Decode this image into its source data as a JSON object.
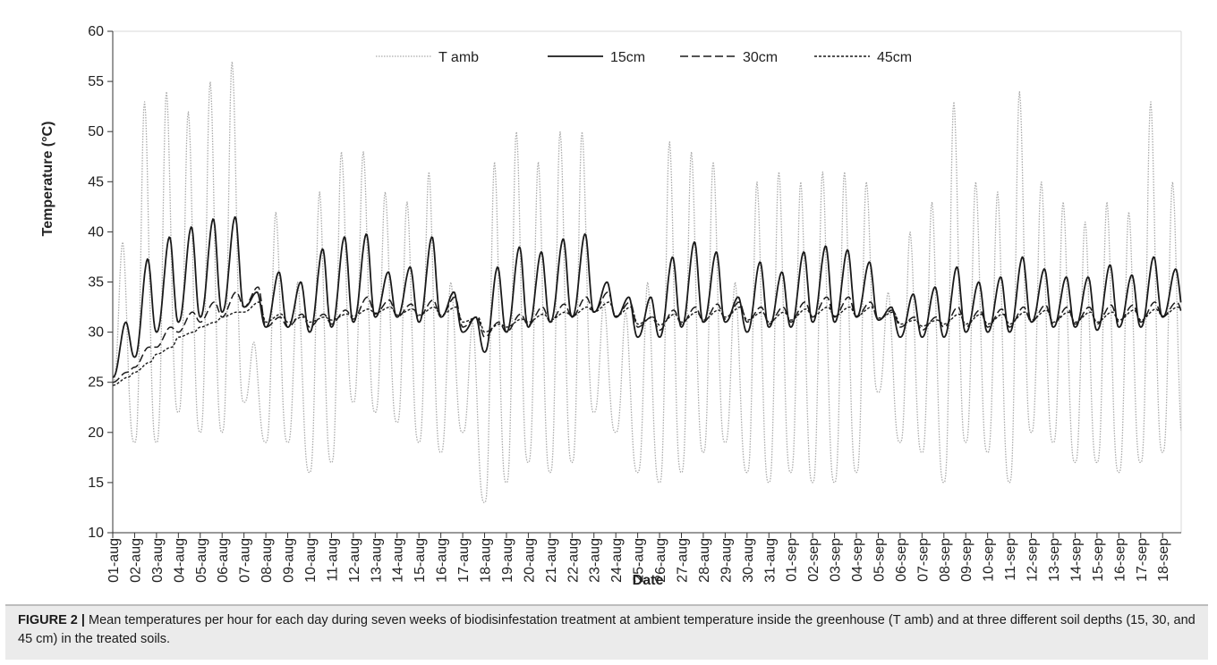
{
  "chart_data": {
    "type": "line",
    "title": "",
    "xlabel": "Date",
    "ylabel": "Temperature (°C)",
    "ylim": [
      10,
      60
    ],
    "yticks": [
      10,
      15,
      20,
      25,
      30,
      35,
      40,
      45,
      50,
      55,
      60
    ],
    "grid": false,
    "legend_position": "top-center",
    "categories": [
      "01-aug",
      "02-aug",
      "03-aug",
      "04-aug",
      "05-aug",
      "06-aug",
      "07-aug",
      "08-aug",
      "09-aug",
      "10-aug",
      "11-aug",
      "12-aug",
      "13-aug",
      "14-aug",
      "15-aug",
      "16-aug",
      "17-aug",
      "18-aug",
      "19-aug",
      "20-aug",
      "21-aug",
      "22-aug",
      "23-aug",
      "24-aug",
      "25-aug",
      "26-aug",
      "27-aug",
      "28-aug",
      "29-aug",
      "30-aug",
      "31-aug",
      "01-sep",
      "02-sep",
      "03-sep",
      "04-sep",
      "05-sep",
      "06-sep",
      "07-sep",
      "08-sep",
      "09-sep",
      "10-sep",
      "11-sep",
      "12-sep",
      "13-sep",
      "14-sep",
      "15-sep",
      "16-sep",
      "17-sep",
      "18-sep"
    ],
    "series": [
      {
        "name": "T amb",
        "style": "dotted",
        "color": "#aaaaaa",
        "daily_max": [
          39,
          53,
          54,
          52,
          55,
          57,
          29,
          42,
          35,
          44,
          48,
          48,
          44,
          43,
          46,
          35,
          31,
          47,
          50,
          47,
          50,
          50,
          33,
          32,
          35,
          49,
          48,
          47,
          35,
          45,
          46,
          45,
          46,
          46,
          45,
          34,
          40,
          43,
          53,
          45,
          44,
          54,
          45,
          43,
          41,
          43,
          42,
          53,
          45
        ],
        "daily_min": [
          25,
          19,
          19,
          22,
          20,
          20,
          23,
          19,
          19,
          16,
          17,
          23,
          22,
          21,
          19,
          18,
          20,
          13,
          15,
          17,
          16,
          17,
          22,
          20,
          16,
          15,
          16,
          18,
          19,
          16,
          15,
          16,
          15,
          15,
          16,
          24,
          19,
          18,
          15,
          19,
          18,
          15,
          20,
          19,
          17,
          17,
          16,
          17,
          18
        ]
      },
      {
        "name": "15cm",
        "style": "solid",
        "color": "#1a1a1a",
        "daily_max": [
          31,
          37.3,
          39.5,
          40.5,
          41.3,
          41.5,
          34,
          36,
          35,
          38.3,
          39.5,
          39.8,
          36,
          36.5,
          39.5,
          34,
          31.5,
          36.5,
          38.5,
          38,
          39.3,
          39.8,
          35,
          33.5,
          33.5,
          37.5,
          39,
          38,
          33.5,
          37,
          36,
          38,
          38.6,
          38.2,
          37,
          32.5,
          33.8,
          34.5,
          36.5,
          35,
          35.5,
          37.5,
          36.3,
          35.5,
          35.5,
          36.7,
          35.7,
          37.5,
          36.3
        ],
        "daily_min": [
          25.5,
          27.5,
          30,
          31,
          31.5,
          32,
          32.5,
          30.5,
          30.5,
          30,
          30.5,
          31,
          31.5,
          31.5,
          31,
          31.5,
          30,
          28,
          30,
          30.5,
          31,
          31.5,
          32,
          31.5,
          29.5,
          29.5,
          30.5,
          31,
          31,
          30,
          30.5,
          30.5,
          31,
          31,
          31.5,
          31.2,
          29.5,
          29.5,
          29.5,
          30,
          30,
          30,
          31,
          30.5,
          30.5,
          30.2,
          30.5,
          30.5,
          31.5
        ]
      },
      {
        "name": "30cm",
        "style": "dashed",
        "color": "#1a1a1a",
        "daily_max": [
          26,
          28.5,
          30.5,
          32,
          33,
          34,
          34.5,
          31.5,
          31.8,
          31.8,
          32.2,
          33.5,
          33.2,
          32.8,
          33.2,
          33.5,
          31.5,
          31,
          31.8,
          32.5,
          32.8,
          33.5,
          34,
          33,
          31.5,
          32.2,
          32.5,
          32.8,
          33,
          32.5,
          32.5,
          33,
          33.5,
          33.5,
          33,
          32.2,
          31.5,
          31.5,
          32.5,
          32.2,
          32.3,
          32.5,
          32.7,
          32.5,
          32.5,
          32.7,
          32.7,
          33,
          33
        ],
        "daily_min": [
          25,
          26.5,
          28.5,
          30,
          31,
          31.5,
          32.5,
          30.5,
          30.5,
          30.5,
          30.8,
          31.3,
          31.8,
          31.5,
          31.5,
          31.5,
          30.5,
          29.5,
          30,
          30.7,
          31,
          31.5,
          32,
          31.5,
          30.5,
          30.2,
          30.8,
          31,
          31.3,
          31,
          30.8,
          31,
          31.5,
          31.5,
          31.5,
          31.2,
          30.5,
          30.2,
          30.5,
          30.5,
          30.5,
          30.5,
          31,
          30.8,
          30.8,
          30.8,
          31,
          31,
          31.5
        ]
      },
      {
        "name": "45cm",
        "style": "short-dashed",
        "color": "#1a1a1a",
        "daily_max": [
          25.5,
          27,
          28.5,
          30,
          31,
          32,
          33,
          31.8,
          31.5,
          31.5,
          31.8,
          32.3,
          32.5,
          32.3,
          32.5,
          32.5,
          31.5,
          30.8,
          31.3,
          31.8,
          32,
          32.5,
          33,
          32.5,
          31.5,
          31.8,
          32,
          32.2,
          32.5,
          32,
          32,
          32.3,
          32.5,
          32.5,
          32.5,
          32,
          31.2,
          31.2,
          31.8,
          31.8,
          31.8,
          32,
          32.2,
          32,
          32,
          32,
          32.2,
          32.3,
          32.5
        ],
        "daily_min": [
          24.7,
          26,
          27.8,
          29.5,
          30.5,
          31.5,
          32,
          31,
          31,
          31,
          31.2,
          31.6,
          31.9,
          31.7,
          31.7,
          31.7,
          31,
          30,
          30.5,
          31,
          31.2,
          31.6,
          32,
          31.6,
          30.8,
          30.7,
          31,
          31.2,
          31.5,
          31.2,
          31,
          31.2,
          31.6,
          31.6,
          31.6,
          31.4,
          30.8,
          30.6,
          30.8,
          30.8,
          30.8,
          30.8,
          31.2,
          31,
          31,
          31,
          31.2,
          31.2,
          31.6
        ]
      }
    ]
  },
  "caption": {
    "label": "FIGURE 2 |",
    "text": "Mean temperatures per hour for each day during seven weeks of biodisinfestation treatment at ambient temperature inside the greenhouse (T amb) and at three different soil depths (15, 30, and 45 cm) in the treated soils."
  }
}
